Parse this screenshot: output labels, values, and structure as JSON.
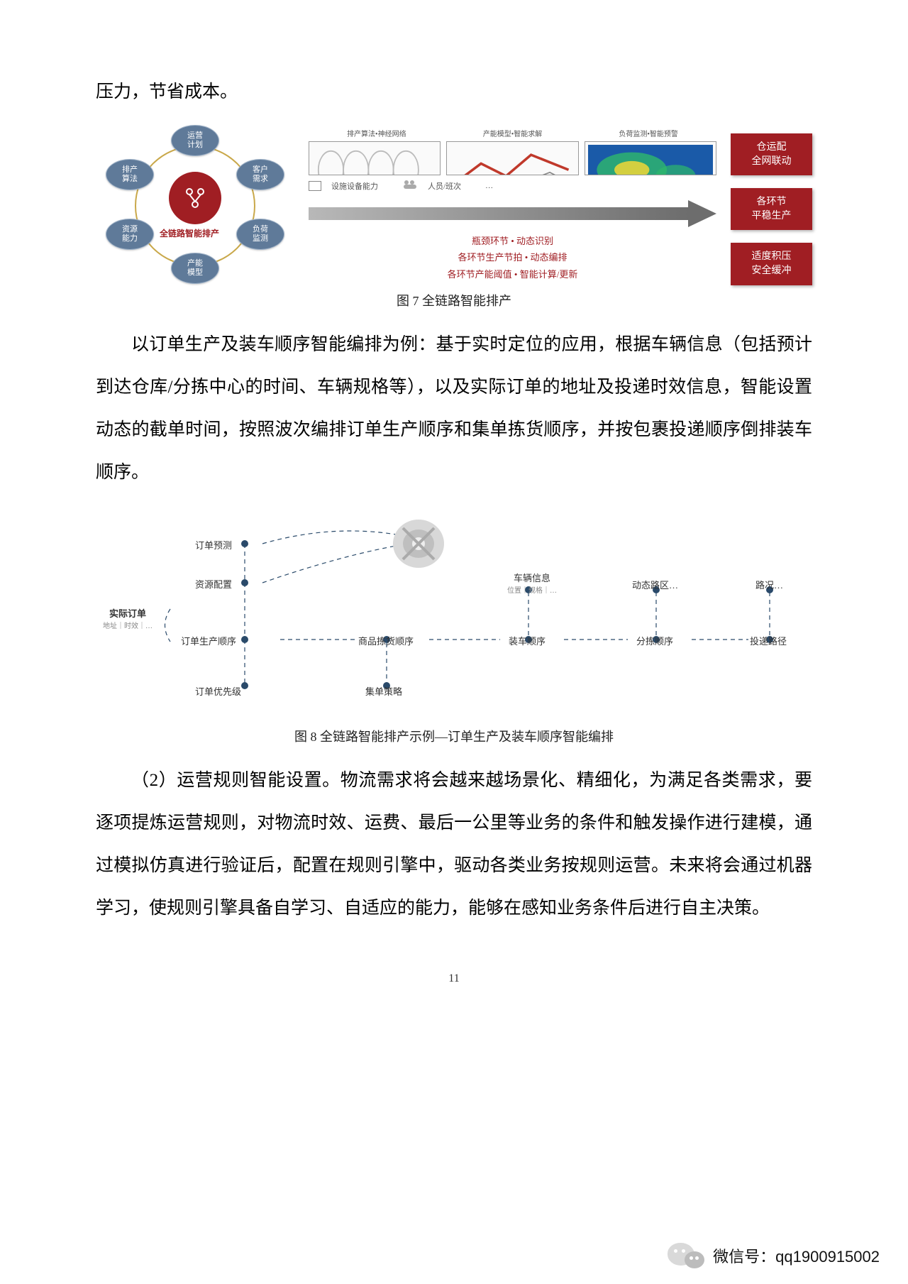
{
  "para0": "压力，节省成本。",
  "fig7": {
    "caption": "图 7 全链路智能排产",
    "ovals": {
      "top": "运营\n计划",
      "tl": "排产\n算法",
      "tr": "客户\n需求",
      "bl": "资源\n能力",
      "br": "负荷\n监测",
      "bottom": "产能\n模型"
    },
    "center_label": "全链路智能排产",
    "top_labels": [
      "排产算法•神经网络",
      "产能模型•智能求解",
      "负荷监测•智能预警"
    ],
    "row2_items": [
      "设施设备能力",
      "人员/班次",
      "…"
    ],
    "red_lines": [
      "瓶颈环节 • 动态识别",
      "各环节生产节拍 • 动态编排",
      "各环节产能阈值 • 智能计算/更新"
    ],
    "right_boxes": [
      "仓运配\n全网联动",
      "各环节\n平稳生产",
      "适度积压\n安全缓冲"
    ],
    "colors": {
      "oval_bg": "#5f7a99",
      "ring": "#c9a84a",
      "core": "#a01e23",
      "redbox": "#a01e23",
      "arrow_left": "#b8b8b8",
      "arrow_right": "#6d6d6d"
    }
  },
  "para1": "以订单生产及装车顺序智能编排为例：基于实时定位的应用，根据车辆信息（包括预计到达仓库/分拣中心的时间、车辆规格等），以及实际订单的地址及投递时效信息，智能设置动态的截单时间，按照波次编排订单生产顺序和集单拣货顺序，并按包裹投递顺序倒排装车顺序。",
  "fig8": {
    "caption": "图 8 全链路智能排产示例—订单生产及装车顺序智能编排",
    "side_label": "实际订单",
    "side_sub": "地址｜时效｜…",
    "nodes": {
      "n1": "订单预测",
      "n2": "资源配置",
      "n3": "订单生产顺序",
      "n4": "订单优先级",
      "n5": "商品拣货顺序",
      "n6": "集单策略",
      "n7": "装车顺序",
      "n8": "分拣顺序",
      "n9": "投递路径",
      "t1": "车辆信息",
      "t1sub": "位置｜规格｜…",
      "t2": "动态路区…",
      "t3": "路况…"
    },
    "colors": {
      "dot": "#2a4a6a",
      "line": "#2a4a6a"
    }
  },
  "para2": "（2）运营规则智能设置。物流需求将会越来越场景化、精细化，为满足各类需求，要逐项提炼运营规则，对物流时效、运费、最后一公里等业务的条件和触发操作进行建模，通过模拟仿真进行验证后，配置在规则引擎中，驱动各类业务按规则运营。未来将会通过机器学习，使规则引擎具备自学习、自适应的能力，能够在感知业务条件后进行自主决策。",
  "page_number": "11",
  "footer": {
    "label": "微信号：",
    "id": "qq1900915002"
  }
}
